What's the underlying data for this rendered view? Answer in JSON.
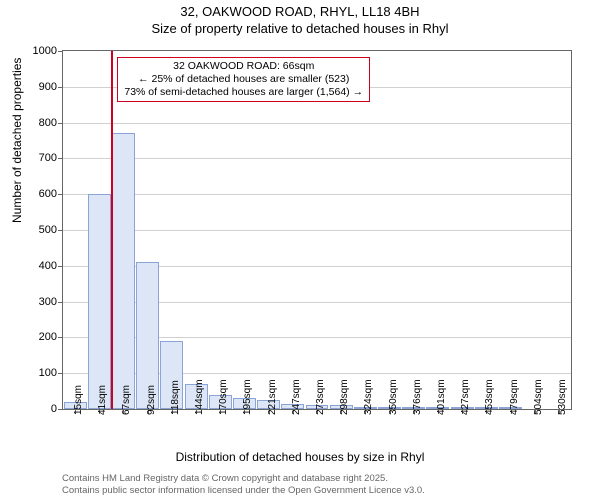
{
  "title": {
    "line1": "32, OAKWOOD ROAD, RHYL, LL18 4BH",
    "line2": "Size of property relative to detached houses in Rhyl"
  },
  "chart": {
    "type": "histogram",
    "ylabel": "Number of detached properties",
    "xlabel": "Distribution of detached houses by size in Rhyl",
    "ylim": [
      0,
      1000
    ],
    "ytick_step": 100,
    "bar_fill": "#dce6f6",
    "bar_border": "#8aa4d6",
    "grid_color": "#d0d0d0",
    "axis_color": "#666666",
    "background_color": "#ffffff",
    "xticks": [
      "15sqm",
      "41sqm",
      "67sqm",
      "92sqm",
      "118sqm",
      "144sqm",
      "170sqm",
      "195sqm",
      "221sqm",
      "247sqm",
      "273sqm",
      "298sqm",
      "324sqm",
      "350sqm",
      "376sqm",
      "401sqm",
      "427sqm",
      "453sqm",
      "479sqm",
      "504sqm",
      "530sqm"
    ],
    "values": [
      20,
      600,
      770,
      410,
      190,
      70,
      40,
      30,
      25,
      15,
      12,
      10,
      5,
      3,
      2,
      2,
      1,
      1,
      1,
      0,
      0
    ],
    "reference_line": {
      "color": "#d00020",
      "width": 2,
      "x_index": 2
    },
    "annotation": {
      "border_color": "#d00020",
      "lines": [
        "32 OAKWOOD ROAD: 66sqm",
        "← 25% of detached houses are smaller (523)",
        "73% of semi-detached houses are larger (1,564) →"
      ]
    }
  },
  "footnote": {
    "line1": "Contains HM Land Registry data © Crown copyright and database right 2025.",
    "line2": "Contains public sector information licensed under the Open Government Licence v3.0."
  }
}
